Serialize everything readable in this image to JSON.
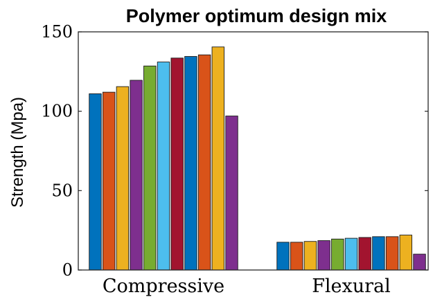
{
  "chart_data": {
    "type": "bar",
    "title": "Polymer optimum design mix",
    "xlabel": "",
    "ylabel": "Strength (Mpa)",
    "ylim": [
      0,
      150
    ],
    "yticks": [
      0,
      50,
      100,
      150
    ],
    "grid": false,
    "categories": [
      "Compressive",
      "Flexural"
    ],
    "series": [
      {
        "color": "#0072BD",
        "values": [
          111,
          17.5
        ]
      },
      {
        "color": "#D95319",
        "values": [
          112,
          17.5
        ]
      },
      {
        "color": "#EDB120",
        "values": [
          115.5,
          18
        ]
      },
      {
        "color": "#7E2F8E",
        "values": [
          119.5,
          18.5
        ]
      },
      {
        "color": "#77AC30",
        "values": [
          128.5,
          19.5
        ]
      },
      {
        "color": "#4DBEEE",
        "values": [
          131,
          20
        ]
      },
      {
        "color": "#A2142F",
        "values": [
          133.5,
          20.5
        ]
      },
      {
        "color": "#0072BD",
        "values": [
          134.5,
          21
        ]
      },
      {
        "color": "#D95319",
        "values": [
          135.5,
          21
        ]
      },
      {
        "color": "#EDB120",
        "values": [
          140.5,
          22
        ]
      },
      {
        "color": "#7E2F8E",
        "values": [
          97,
          10
        ]
      }
    ]
  }
}
